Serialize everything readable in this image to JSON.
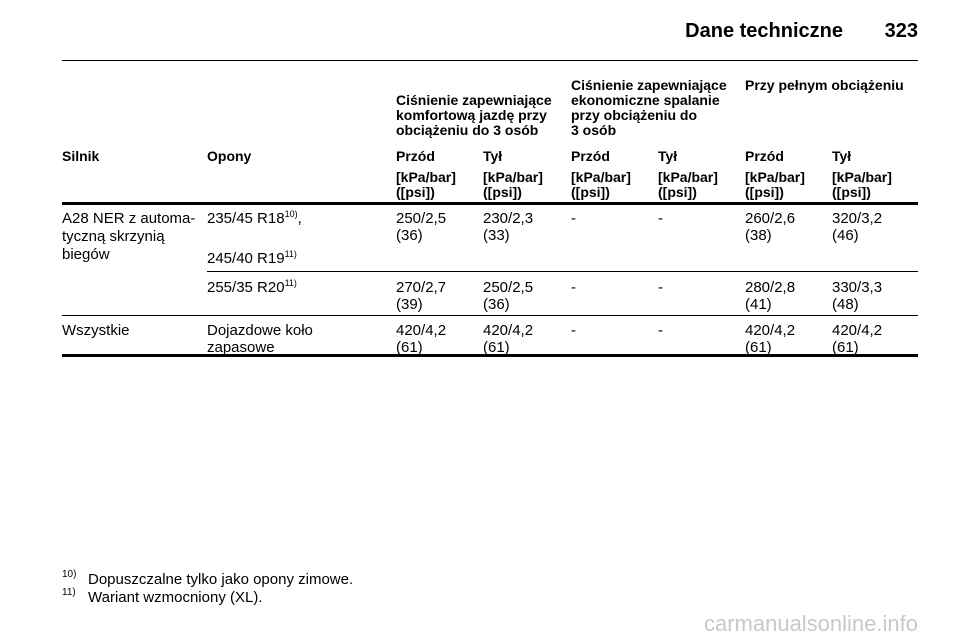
{
  "header": {
    "title": "Dane techniczne",
    "page": "323"
  },
  "table": {
    "groups": [
      {
        "lines": [
          "Ciśnienie zapewniające",
          "komfortową jazdę przy",
          "obciążeniu do 3 osób"
        ]
      },
      {
        "lines": [
          "Ciśnienie zapewniające",
          "ekonomiczne spalanie",
          "przy obciążeniu do",
          "3 osób"
        ]
      },
      {
        "lines": [
          "Przy pełnym obciążeniu"
        ]
      }
    ],
    "columns": [
      "Silnik",
      "Opony",
      "Przód",
      "Tył",
      "Przód",
      "Tył",
      "Przód",
      "Tył"
    ],
    "units": [
      [
        "[kPa/bar]",
        "([psi])"
      ],
      [
        "[kPa/bar]",
        "([psi])"
      ],
      [
        "[kPa/bar]",
        "([psi])"
      ],
      [
        "[kPa/bar]",
        "([psi])"
      ],
      [
        "[kPa/bar]",
        "([psi])"
      ],
      [
        "[kPa/bar]",
        "([psi])"
      ]
    ],
    "rows": [
      {
        "engine": [
          "A28 NER z automa-",
          "tyczną skrzynią",
          "biegów"
        ],
        "tyres": [
          {
            "text": "235/45 R18",
            "ref": "10)",
            "suffix": ","
          },
          {
            "text": "245/40 R19",
            "ref": "11)"
          }
        ],
        "values": [
          [
            "250/2,5",
            "(36)"
          ],
          [
            "230/2,3",
            "(33)"
          ],
          [
            "-"
          ],
          [
            "-"
          ],
          [
            "260/2,6",
            "(38)"
          ],
          [
            "320/3,2",
            "(46)"
          ]
        ]
      },
      {
        "engine": [],
        "tyres": [
          {
            "text": "255/35 R20",
            "ref": "11)"
          }
        ],
        "values": [
          [
            "270/2,7",
            "(39)"
          ],
          [
            "250/2,5",
            "(36)"
          ],
          [
            "-"
          ],
          [
            "-"
          ],
          [
            "280/2,8",
            "(41)"
          ],
          [
            "330/3,3",
            "(48)"
          ]
        ]
      },
      {
        "engine": [
          "Wszystkie"
        ],
        "tyres": [
          {
            "text": "Dojazdowe koło"
          },
          {
            "text": "zapasowe"
          }
        ],
        "values": [
          [
            "420/4,2",
            "(61)"
          ],
          [
            "420/4,2",
            "(61)"
          ],
          [
            "-"
          ],
          [
            "-"
          ],
          [
            "420/4,2",
            "(61)"
          ],
          [
            "420/4,2",
            "(61)"
          ]
        ]
      }
    ]
  },
  "footnotes": [
    {
      "ref": "10)",
      "text": "Dopuszczalne tylko jako opony zimowe."
    },
    {
      "ref": "11)",
      "text": "Wariant wzmocniony (XL)."
    }
  ],
  "watermark": "carmanualsonline.info"
}
